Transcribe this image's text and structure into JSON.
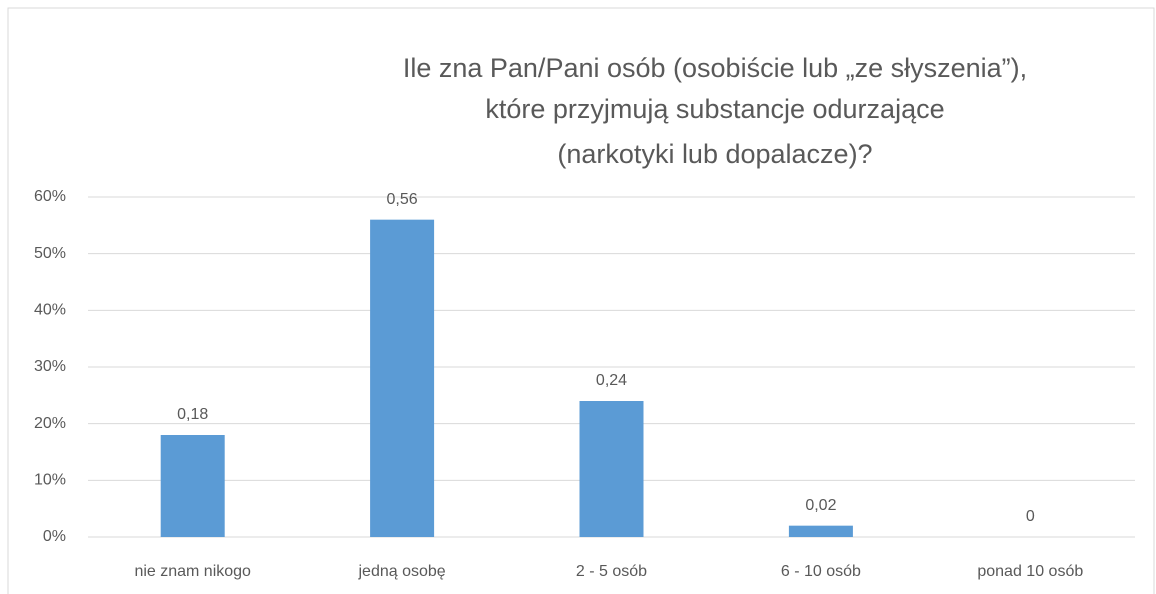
{
  "chart_data": {
    "type": "bar",
    "title": [
      "Ile zna Pan/Pani osób (osobiście lub „ze słyszenia”),",
      "które przyjmują substancje odurzające",
      "(narkotyki lub dopalacze)?"
    ],
    "categories": [
      "nie znam nikogo",
      "jedną osobę",
      "2 - 5 osób",
      "6 - 10 osób",
      "ponad 10 osób"
    ],
    "values": [
      18,
      56,
      24,
      2,
      0
    ],
    "value_labels": [
      "0,18",
      "0,56",
      "0,24",
      "0,02",
      "0"
    ],
    "color": "#5b9bd5",
    "ylim": [
      0,
      60
    ],
    "yticks": [
      {
        "value": 0,
        "label": "0%"
      },
      {
        "value": 10,
        "label": "10%"
      },
      {
        "value": 20,
        "label": "20%"
      },
      {
        "value": 30,
        "label": "30%"
      },
      {
        "value": 40,
        "label": "40%"
      },
      {
        "value": 50,
        "label": "50%"
      },
      {
        "value": 60,
        "label": "60%"
      }
    ],
    "grid": true
  }
}
